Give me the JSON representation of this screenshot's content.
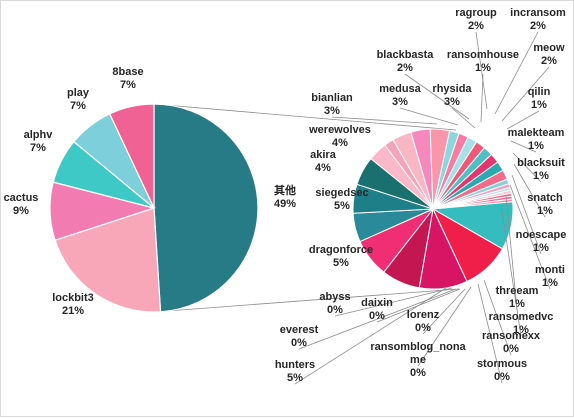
{
  "chart_data": {
    "type": "pie",
    "subtype": "pie-of-pie",
    "main_pie": {
      "slices": [
        {
          "label": "其他",
          "value": 49,
          "display": "49%",
          "color": "#267b86"
        },
        {
          "label": "lockbit3",
          "value": 21,
          "display": "21%",
          "color": "#f7a7b7"
        },
        {
          "label": "cactus",
          "value": 9,
          "display": "9%",
          "color": "#f27bb1"
        },
        {
          "label": "alphv",
          "value": 7,
          "display": "7%",
          "color": "#3ec9c7"
        },
        {
          "label": "play",
          "value": 7,
          "display": "7%",
          "color": "#7dcfdc"
        },
        {
          "label": "8base",
          "value": 7,
          "display": "7%",
          "color": "#f16294"
        }
      ]
    },
    "secondary_pie": {
      "slices": [
        {
          "label": "ragroup",
          "value": 2,
          "display": "2%",
          "color": "#f9b6c3"
        },
        {
          "label": "incransom",
          "value": 2,
          "display": "2%",
          "color": "#f589bd"
        },
        {
          "label": "meow",
          "value": 2,
          "display": "2%",
          "color": "#fa96aa"
        },
        {
          "label": "qilin",
          "value": 1,
          "display": "1%",
          "color": "#8dd6e0"
        },
        {
          "label": "malekteam",
          "value": 1,
          "display": "1%",
          "color": "#fa7aa1"
        },
        {
          "label": "blacksuit",
          "value": 1,
          "display": "1%",
          "color": "#a6e0e8"
        },
        {
          "label": "snatch",
          "value": 1,
          "display": "1%",
          "color": "#ef5876"
        },
        {
          "label": "noescape",
          "value": 1,
          "display": "1%",
          "color": "#4fbfc4"
        },
        {
          "label": "monti",
          "value": 1,
          "display": "1%",
          "color": "#e3356e"
        },
        {
          "label": "threeam",
          "value": 1,
          "display": "1%",
          "color": "#2ba8b0"
        },
        {
          "label": "ransomedvc",
          "value": 1,
          "display": "1%",
          "color": "#f26c8a"
        },
        {
          "label": "ransomexx",
          "value": 0.5,
          "display": "0%",
          "color": "#88d1da"
        },
        {
          "label": "stormous",
          "value": 0.4,
          "display": "0%",
          "color": "#f4a0c0"
        },
        {
          "label": "ransomblog_noname",
          "value": 0.3,
          "display": "0%",
          "color": "#b7e4ea"
        },
        {
          "label": "lorenz",
          "value": 0.3,
          "display": "0%",
          "color": "#f7c4cf"
        },
        {
          "label": "daixin",
          "value": 0.3,
          "display": "0%",
          "color": "#e86a8f"
        },
        {
          "label": "everest",
          "value": 0.3,
          "display": "0%",
          "color": "#f06a93"
        },
        {
          "label": "abyss",
          "value": 0.3,
          "display": "0%",
          "color": "#f48fb0"
        },
        {
          "label": "hunters",
          "value": 5,
          "display": "5%",
          "color": "#34bcbf"
        },
        {
          "label": "dragonforce",
          "value": 5,
          "display": "5%",
          "color": "#ef1f4a"
        },
        {
          "label": "siegedsec",
          "value": 5,
          "display": "5%",
          "color": "#d81464"
        },
        {
          "label": "akira",
          "value": 4,
          "display": "4%",
          "color": "#c41650"
        },
        {
          "label": "werewolves",
          "value": 4,
          "display": "4%",
          "color": "#ef2e74"
        },
        {
          "label": "bianlian",
          "value": 3,
          "display": "3%",
          "color": "#2b8a99"
        },
        {
          "label": "medusa",
          "value": 3,
          "display": "3%",
          "color": "#1e7f88"
        },
        {
          "label": "rhysida",
          "value": 3,
          "display": "3%",
          "color": "#19706f"
        },
        {
          "label": "blackbasta",
          "value": 2,
          "display": "2%",
          "color": "#fbb8c8"
        },
        {
          "label": "ransomhouse",
          "value": 1,
          "display": "1%",
          "color": "#f5a3b8"
        }
      ]
    }
  }
}
